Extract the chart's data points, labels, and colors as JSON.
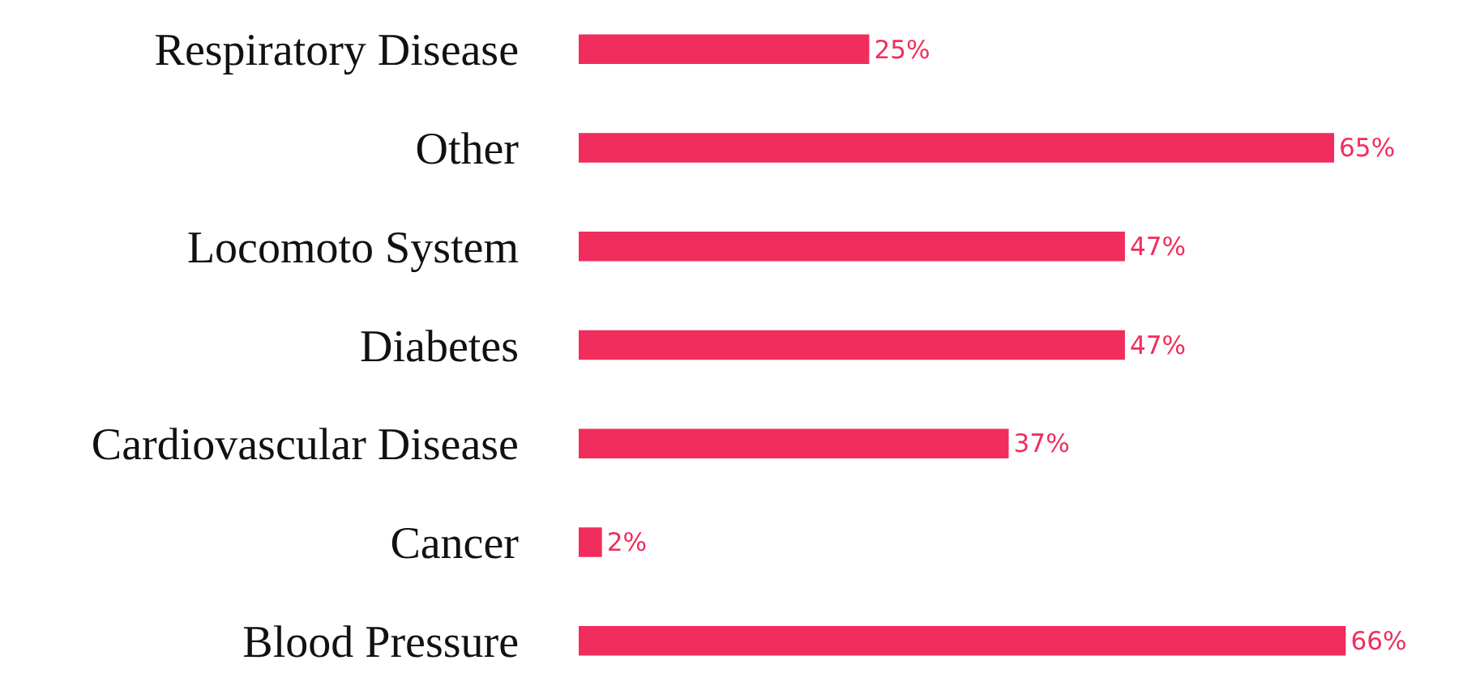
{
  "chart_data": {
    "type": "bar",
    "orientation": "horizontal",
    "categories": [
      "Respiratory Disease",
      "Other",
      "Locomoto System",
      "Diabetes",
      "Cardiovascular Disease",
      "Cancer",
      "Blood Pressure"
    ],
    "values": [
      25,
      65,
      47,
      47,
      37,
      2,
      66
    ],
    "value_labels": [
      "25%",
      "65%",
      "47%",
      "47%",
      "37%",
      "2%",
      "66%"
    ],
    "color": "#f02d5c",
    "tick_labels": "y"
  }
}
